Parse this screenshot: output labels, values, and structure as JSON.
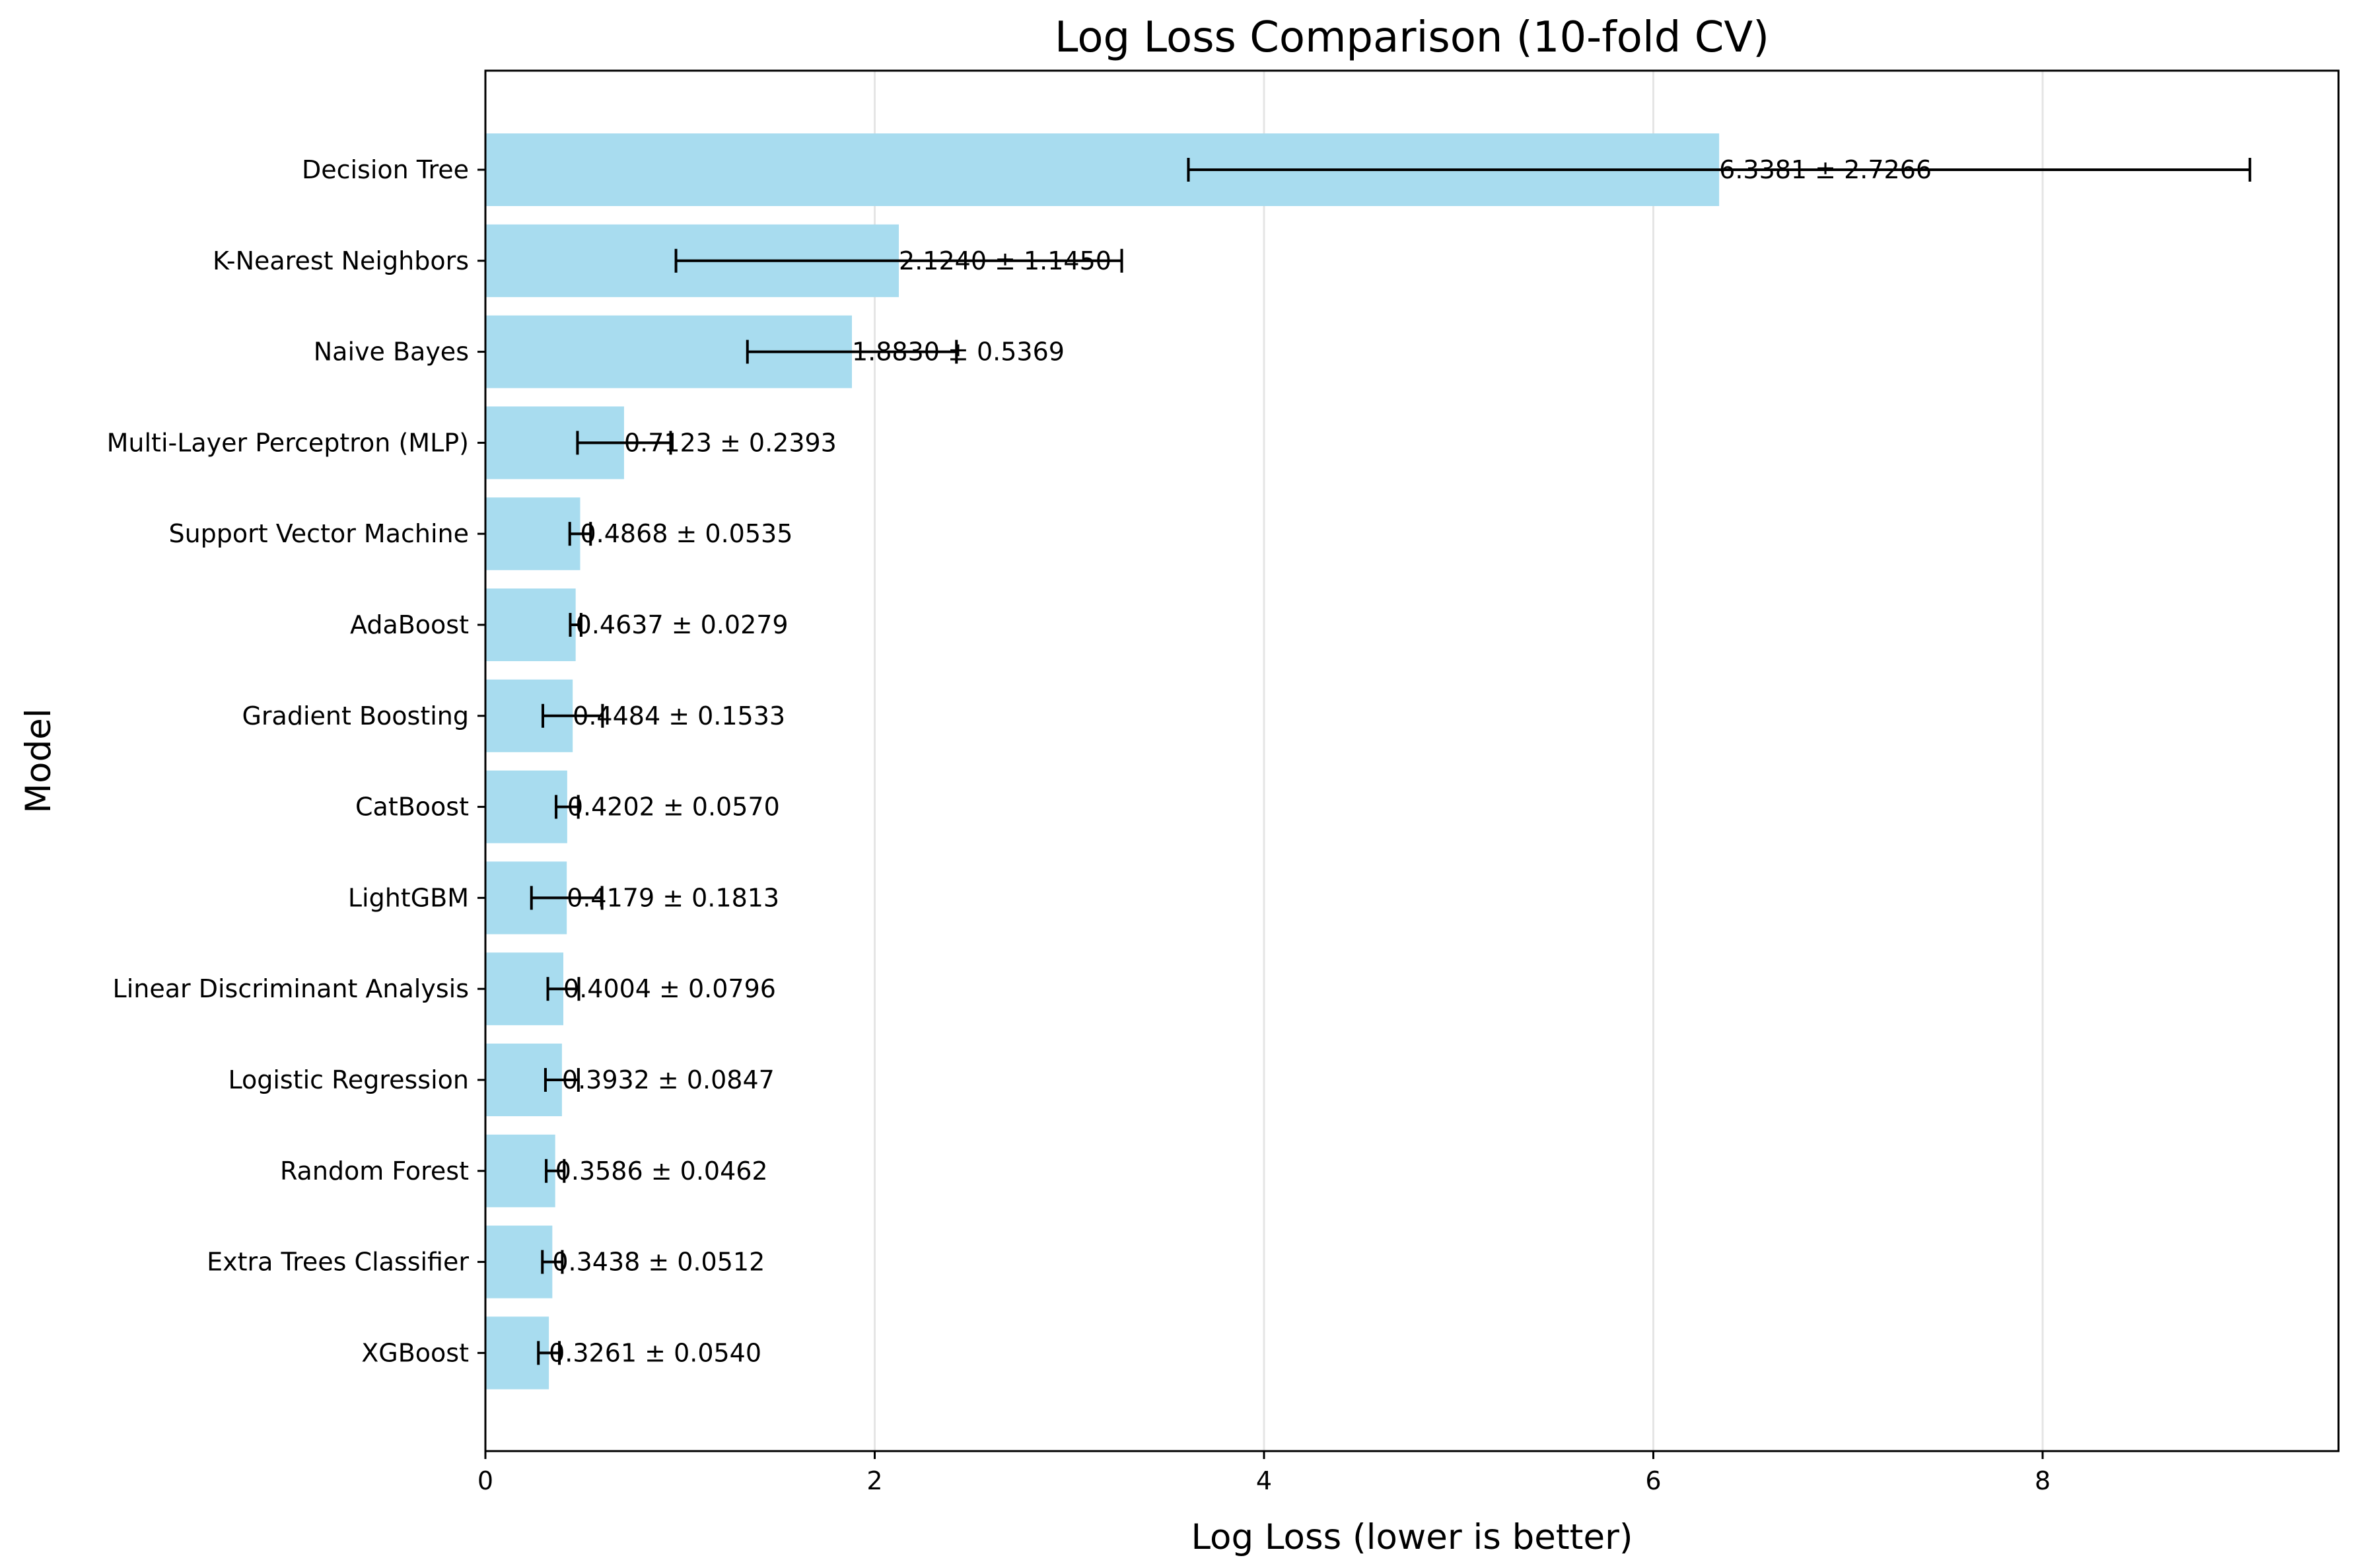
{
  "chart_data": {
    "type": "bar",
    "orientation": "horizontal",
    "title": "Log Loss Comparison (10-fold CV)",
    "xlabel": "Log Loss (lower is better)",
    "ylabel": "Model",
    "xlim": [
      0,
      9.52
    ],
    "xticks": [
      0,
      2,
      4,
      6,
      8
    ],
    "grid": "x",
    "colors": {
      "bar": "#a8dcef",
      "error_bar": "#000000",
      "grid": "#e5e5e5"
    },
    "categories": [
      "Decision Tree",
      "K-Nearest Neighbors",
      "Naive Bayes",
      "Multi-Layer Perceptron (MLP)",
      "Support Vector Machine",
      "AdaBoost",
      "Gradient Boosting",
      "CatBoost",
      "LightGBM",
      "Linear Discriminant Analysis",
      "Logistic Regression",
      "Random Forest",
      "Extra Trees Classifier",
      "XGBoost"
    ],
    "values": [
      6.3381,
      2.124,
      1.883,
      0.7123,
      0.4868,
      0.4637,
      0.4484,
      0.4202,
      0.4179,
      0.4004,
      0.3932,
      0.3586,
      0.3438,
      0.3261
    ],
    "errors": [
      2.7266,
      1.145,
      0.5369,
      0.2393,
      0.0535,
      0.0279,
      0.1533,
      0.057,
      0.1813,
      0.0796,
      0.0847,
      0.0462,
      0.0512,
      0.054
    ],
    "labels": [
      "6.3381 ± 2.7266",
      "2.1240 ± 1.1450",
      "1.8830 ± 0.5369",
      "0.7123 ± 0.2393",
      "0.4868 ± 0.0535",
      "0.4637 ± 0.0279",
      "0.4484 ± 0.1533",
      "0.4202 ± 0.0570",
      "0.4179 ± 0.1813",
      "0.4004 ± 0.0796",
      "0.3932 ± 0.0847",
      "0.3586 ± 0.0462",
      "0.3438 ± 0.0512",
      "0.3261 ± 0.0540"
    ]
  }
}
